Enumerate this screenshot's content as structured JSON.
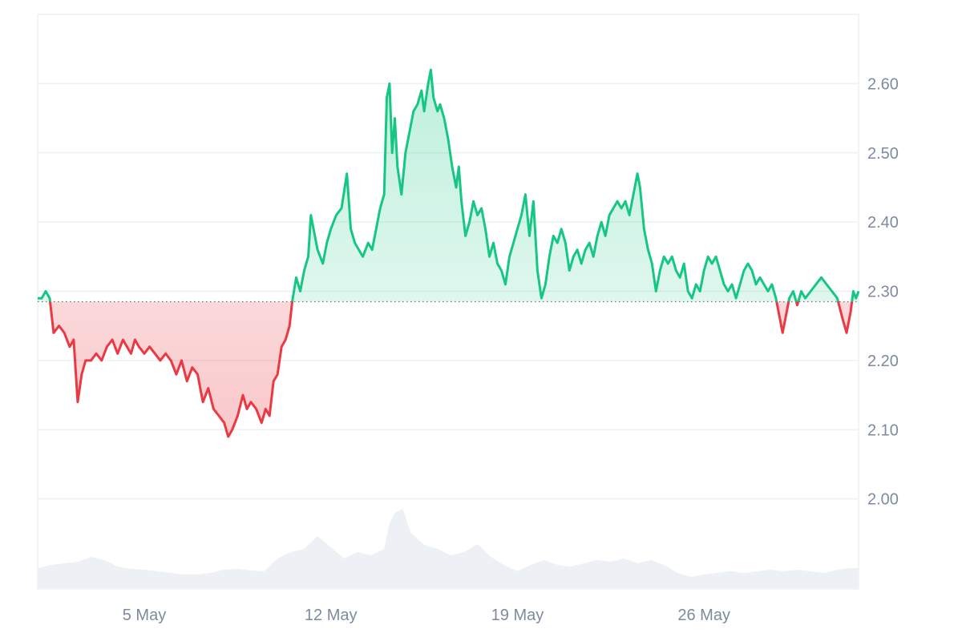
{
  "chart_data": {
    "type": "area",
    "baseline": 2.285,
    "ylim": [
      1.87,
      2.7
    ],
    "y_ticks": [
      "2.00",
      "2.10",
      "2.20",
      "2.30",
      "2.40",
      "2.50",
      "2.60"
    ],
    "y_tick_values": [
      2.0,
      2.1,
      2.2,
      2.3,
      2.4,
      2.5,
      2.6
    ],
    "x_ticks": [
      "5 May",
      "12 May",
      "19 May",
      "26 May"
    ],
    "x_tick_days": [
      5,
      12,
      19,
      26
    ],
    "xlim_days": [
      1.0,
      31.8
    ],
    "grid": true,
    "series": [
      {
        "values_by_day": [
          [
            1.0,
            2.29
          ],
          [
            1.15,
            2.29
          ],
          [
            1.3,
            2.3
          ],
          [
            1.45,
            2.29
          ],
          [
            1.6,
            2.24
          ],
          [
            1.8,
            2.25
          ],
          [
            2.0,
            2.24
          ],
          [
            2.2,
            2.22
          ],
          [
            2.35,
            2.23
          ],
          [
            2.5,
            2.14
          ],
          [
            2.65,
            2.18
          ],
          [
            2.8,
            2.2
          ],
          [
            3.0,
            2.2
          ],
          [
            3.2,
            2.21
          ],
          [
            3.4,
            2.2
          ],
          [
            3.6,
            2.22
          ],
          [
            3.8,
            2.23
          ],
          [
            4.0,
            2.21
          ],
          [
            4.2,
            2.23
          ],
          [
            4.35,
            2.22
          ],
          [
            4.5,
            2.21
          ],
          [
            4.65,
            2.23
          ],
          [
            4.8,
            2.22
          ],
          [
            5.0,
            2.21
          ],
          [
            5.2,
            2.22
          ],
          [
            5.4,
            2.21
          ],
          [
            5.6,
            2.2
          ],
          [
            5.8,
            2.21
          ],
          [
            6.0,
            2.2
          ],
          [
            6.2,
            2.18
          ],
          [
            6.4,
            2.2
          ],
          [
            6.6,
            2.17
          ],
          [
            6.8,
            2.19
          ],
          [
            7.0,
            2.18
          ],
          [
            7.2,
            2.14
          ],
          [
            7.4,
            2.16
          ],
          [
            7.6,
            2.13
          ],
          [
            7.8,
            2.12
          ],
          [
            8.0,
            2.11
          ],
          [
            8.15,
            2.09
          ],
          [
            8.3,
            2.1
          ],
          [
            8.5,
            2.12
          ],
          [
            8.7,
            2.15
          ],
          [
            8.85,
            2.13
          ],
          [
            9.0,
            2.14
          ],
          [
            9.2,
            2.13
          ],
          [
            9.4,
            2.11
          ],
          [
            9.55,
            2.13
          ],
          [
            9.7,
            2.12
          ],
          [
            9.85,
            2.17
          ],
          [
            10.0,
            2.18
          ],
          [
            10.15,
            2.22
          ],
          [
            10.3,
            2.23
          ],
          [
            10.45,
            2.25
          ],
          [
            10.55,
            2.285
          ],
          [
            10.7,
            2.32
          ],
          [
            10.85,
            2.3
          ],
          [
            11.0,
            2.33
          ],
          [
            11.15,
            2.35
          ],
          [
            11.25,
            2.41
          ],
          [
            11.35,
            2.39
          ],
          [
            11.5,
            2.36
          ],
          [
            11.7,
            2.34
          ],
          [
            11.85,
            2.37
          ],
          [
            12.0,
            2.39
          ],
          [
            12.2,
            2.41
          ],
          [
            12.4,
            2.42
          ],
          [
            12.6,
            2.47
          ],
          [
            12.75,
            2.39
          ],
          [
            12.9,
            2.37
          ],
          [
            13.05,
            2.36
          ],
          [
            13.2,
            2.35
          ],
          [
            13.4,
            2.37
          ],
          [
            13.55,
            2.36
          ],
          [
            13.7,
            2.39
          ],
          [
            13.85,
            2.42
          ],
          [
            14.0,
            2.44
          ],
          [
            14.1,
            2.58
          ],
          [
            14.2,
            2.6
          ],
          [
            14.3,
            2.5
          ],
          [
            14.4,
            2.55
          ],
          [
            14.5,
            2.48
          ],
          [
            14.65,
            2.44
          ],
          [
            14.8,
            2.5
          ],
          [
            14.95,
            2.53
          ],
          [
            15.1,
            2.56
          ],
          [
            15.25,
            2.57
          ],
          [
            15.4,
            2.59
          ],
          [
            15.5,
            2.56
          ],
          [
            15.65,
            2.6
          ],
          [
            15.75,
            2.62
          ],
          [
            15.85,
            2.58
          ],
          [
            16.0,
            2.56
          ],
          [
            16.1,
            2.57
          ],
          [
            16.25,
            2.55
          ],
          [
            16.4,
            2.52
          ],
          [
            16.55,
            2.48
          ],
          [
            16.7,
            2.45
          ],
          [
            16.8,
            2.48
          ],
          [
            16.9,
            2.43
          ],
          [
            17.05,
            2.38
          ],
          [
            17.2,
            2.4
          ],
          [
            17.35,
            2.43
          ],
          [
            17.5,
            2.41
          ],
          [
            17.65,
            2.42
          ],
          [
            17.8,
            2.39
          ],
          [
            17.95,
            2.35
          ],
          [
            18.1,
            2.37
          ],
          [
            18.25,
            2.34
          ],
          [
            18.4,
            2.33
          ],
          [
            18.55,
            2.31
          ],
          [
            18.7,
            2.35
          ],
          [
            18.85,
            2.37
          ],
          [
            19.0,
            2.39
          ],
          [
            19.15,
            2.41
          ],
          [
            19.3,
            2.44
          ],
          [
            19.45,
            2.38
          ],
          [
            19.6,
            2.43
          ],
          [
            19.75,
            2.33
          ],
          [
            19.9,
            2.29
          ],
          [
            20.05,
            2.31
          ],
          [
            20.2,
            2.35
          ],
          [
            20.35,
            2.38
          ],
          [
            20.5,
            2.37
          ],
          [
            20.65,
            2.39
          ],
          [
            20.8,
            2.37
          ],
          [
            20.95,
            2.33
          ],
          [
            21.1,
            2.35
          ],
          [
            21.25,
            2.36
          ],
          [
            21.4,
            2.34
          ],
          [
            21.55,
            2.36
          ],
          [
            21.7,
            2.37
          ],
          [
            21.85,
            2.35
          ],
          [
            22.0,
            2.38
          ],
          [
            22.15,
            2.4
          ],
          [
            22.3,
            2.38
          ],
          [
            22.45,
            2.41
          ],
          [
            22.6,
            2.42
          ],
          [
            22.75,
            2.43
          ],
          [
            22.9,
            2.42
          ],
          [
            23.05,
            2.43
          ],
          [
            23.2,
            2.41
          ],
          [
            23.35,
            2.44
          ],
          [
            23.5,
            2.47
          ],
          [
            23.6,
            2.45
          ],
          [
            23.75,
            2.39
          ],
          [
            23.9,
            2.36
          ],
          [
            24.05,
            2.34
          ],
          [
            24.2,
            2.3
          ],
          [
            24.35,
            2.33
          ],
          [
            24.5,
            2.35
          ],
          [
            24.65,
            2.34
          ],
          [
            24.8,
            2.35
          ],
          [
            24.95,
            2.33
          ],
          [
            25.1,
            2.32
          ],
          [
            25.25,
            2.34
          ],
          [
            25.4,
            2.3
          ],
          [
            25.55,
            2.29
          ],
          [
            25.7,
            2.31
          ],
          [
            25.85,
            2.3
          ],
          [
            26.0,
            2.33
          ],
          [
            26.15,
            2.35
          ],
          [
            26.3,
            2.34
          ],
          [
            26.45,
            2.35
          ],
          [
            26.6,
            2.33
          ],
          [
            26.75,
            2.31
          ],
          [
            26.9,
            2.3
          ],
          [
            27.05,
            2.31
          ],
          [
            27.2,
            2.29
          ],
          [
            27.35,
            2.31
          ],
          [
            27.5,
            2.33
          ],
          [
            27.65,
            2.34
          ],
          [
            27.8,
            2.33
          ],
          [
            27.95,
            2.31
          ],
          [
            28.1,
            2.32
          ],
          [
            28.25,
            2.31
          ],
          [
            28.4,
            2.3
          ],
          [
            28.55,
            2.31
          ],
          [
            28.7,
            2.29
          ],
          [
            28.85,
            2.26
          ],
          [
            28.95,
            2.24
          ],
          [
            29.05,
            2.26
          ],
          [
            29.2,
            2.29
          ],
          [
            29.35,
            2.3
          ],
          [
            29.5,
            2.28
          ],
          [
            29.65,
            2.3
          ],
          [
            29.8,
            2.29
          ],
          [
            30.0,
            2.3
          ],
          [
            30.2,
            2.31
          ],
          [
            30.4,
            2.32
          ],
          [
            30.6,
            2.31
          ],
          [
            30.8,
            2.3
          ],
          [
            31.0,
            2.29
          ],
          [
            31.2,
            2.26
          ],
          [
            31.35,
            2.24
          ],
          [
            31.5,
            2.27
          ],
          [
            31.6,
            2.3
          ],
          [
            31.7,
            2.29
          ],
          [
            31.8,
            2.3
          ]
        ]
      },
      {
        "type": "area",
        "color": "#edf0f4",
        "values_by_day": [
          [
            1.0,
            0.26
          ],
          [
            1.5,
            0.3
          ],
          [
            2.0,
            0.32
          ],
          [
            2.5,
            0.34
          ],
          [
            3.0,
            0.4
          ],
          [
            3.5,
            0.36
          ],
          [
            4.0,
            0.28
          ],
          [
            4.5,
            0.25
          ],
          [
            5.0,
            0.24
          ],
          [
            5.5,
            0.22
          ],
          [
            6.0,
            0.2
          ],
          [
            6.5,
            0.18
          ],
          [
            7.0,
            0.18
          ],
          [
            7.5,
            0.2
          ],
          [
            8.0,
            0.24
          ],
          [
            8.5,
            0.25
          ],
          [
            9.0,
            0.23
          ],
          [
            9.5,
            0.22
          ],
          [
            10.0,
            0.38
          ],
          [
            10.5,
            0.46
          ],
          [
            11.0,
            0.5
          ],
          [
            11.5,
            0.66
          ],
          [
            12.0,
            0.52
          ],
          [
            12.5,
            0.38
          ],
          [
            13.0,
            0.46
          ],
          [
            13.5,
            0.42
          ],
          [
            14.0,
            0.5
          ],
          [
            14.2,
            0.82
          ],
          [
            14.4,
            0.95
          ],
          [
            14.7,
            1.0
          ],
          [
            15.0,
            0.7
          ],
          [
            15.5,
            0.55
          ],
          [
            16.0,
            0.5
          ],
          [
            16.5,
            0.42
          ],
          [
            17.0,
            0.46
          ],
          [
            17.5,
            0.56
          ],
          [
            18.0,
            0.4
          ],
          [
            18.5,
            0.3
          ],
          [
            19.0,
            0.22
          ],
          [
            19.5,
            0.3
          ],
          [
            20.0,
            0.36
          ],
          [
            20.5,
            0.3
          ],
          [
            21.0,
            0.28
          ],
          [
            21.5,
            0.32
          ],
          [
            22.0,
            0.36
          ],
          [
            22.5,
            0.34
          ],
          [
            23.0,
            0.38
          ],
          [
            23.5,
            0.32
          ],
          [
            24.0,
            0.36
          ],
          [
            24.5,
            0.3
          ],
          [
            25.0,
            0.2
          ],
          [
            25.5,
            0.15
          ],
          [
            26.0,
            0.18
          ],
          [
            26.5,
            0.2
          ],
          [
            27.0,
            0.22
          ],
          [
            27.5,
            0.2
          ],
          [
            28.0,
            0.22
          ],
          [
            28.5,
            0.24
          ],
          [
            29.0,
            0.22
          ],
          [
            29.5,
            0.24
          ],
          [
            30.0,
            0.22
          ],
          [
            30.5,
            0.2
          ],
          [
            31.0,
            0.24
          ],
          [
            31.5,
            0.26
          ],
          [
            31.8,
            0.26
          ]
        ]
      }
    ]
  },
  "colors": {
    "up_line": "#16c784",
    "down_line": "#ea3943",
    "up_fill": "#16c784",
    "down_fill": "#ea3943",
    "grid": "#eef0f3",
    "axis_text": "#7e8aa0",
    "baseline_dots": "#6b7280",
    "volume": "#edf0f4"
  }
}
